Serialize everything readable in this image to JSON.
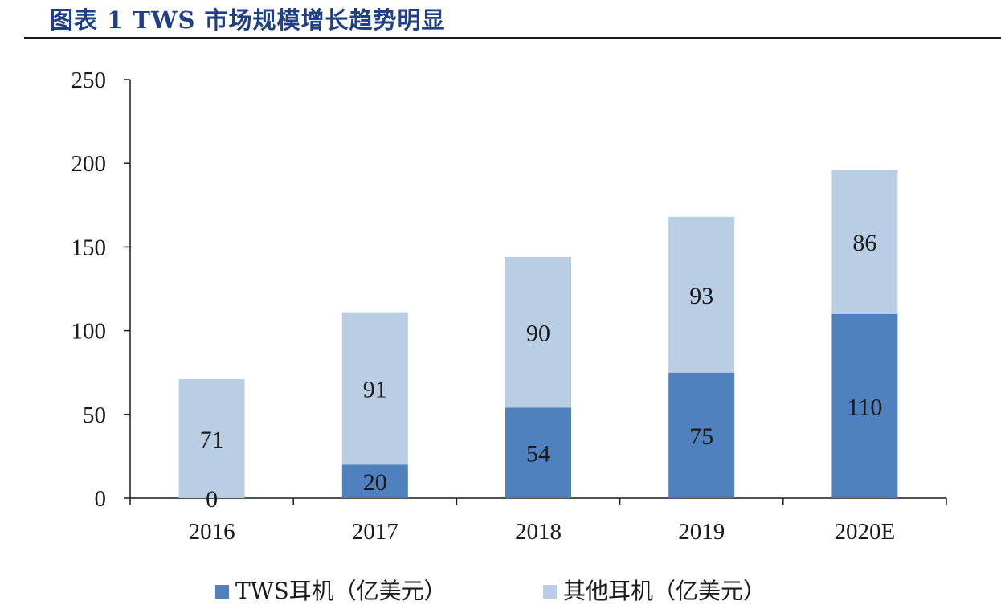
{
  "header": {
    "title": "图表 1 TWS 市场规模增长趋势明显"
  },
  "colors": {
    "tws": "#4e81bd",
    "other": "#b9cde5",
    "title": "#1f3f86",
    "axis": "#1a1a1a"
  },
  "chart_data": {
    "type": "bar",
    "stacked": true,
    "title": "图表 1 TWS 市场规模增长趋势明显",
    "categories": [
      "2016",
      "2017",
      "2018",
      "2019",
      "2020E"
    ],
    "series": [
      {
        "name": "TWS耳机（亿美元）",
        "values": [
          0,
          20,
          54,
          75,
          110
        ]
      },
      {
        "name": "其他耳机（亿美元）",
        "values": [
          71,
          91,
          90,
          93,
          86
        ]
      }
    ],
    "ylim": [
      0,
      250
    ],
    "yticks": [
      0,
      50,
      100,
      150,
      200,
      250
    ],
    "xlabel": "",
    "ylabel": "",
    "grid": false,
    "legend": "bottom"
  },
  "legend": {
    "items": [
      {
        "label": "TWS耳机（亿美元）"
      },
      {
        "label": "其他耳机（亿美元）"
      }
    ]
  }
}
